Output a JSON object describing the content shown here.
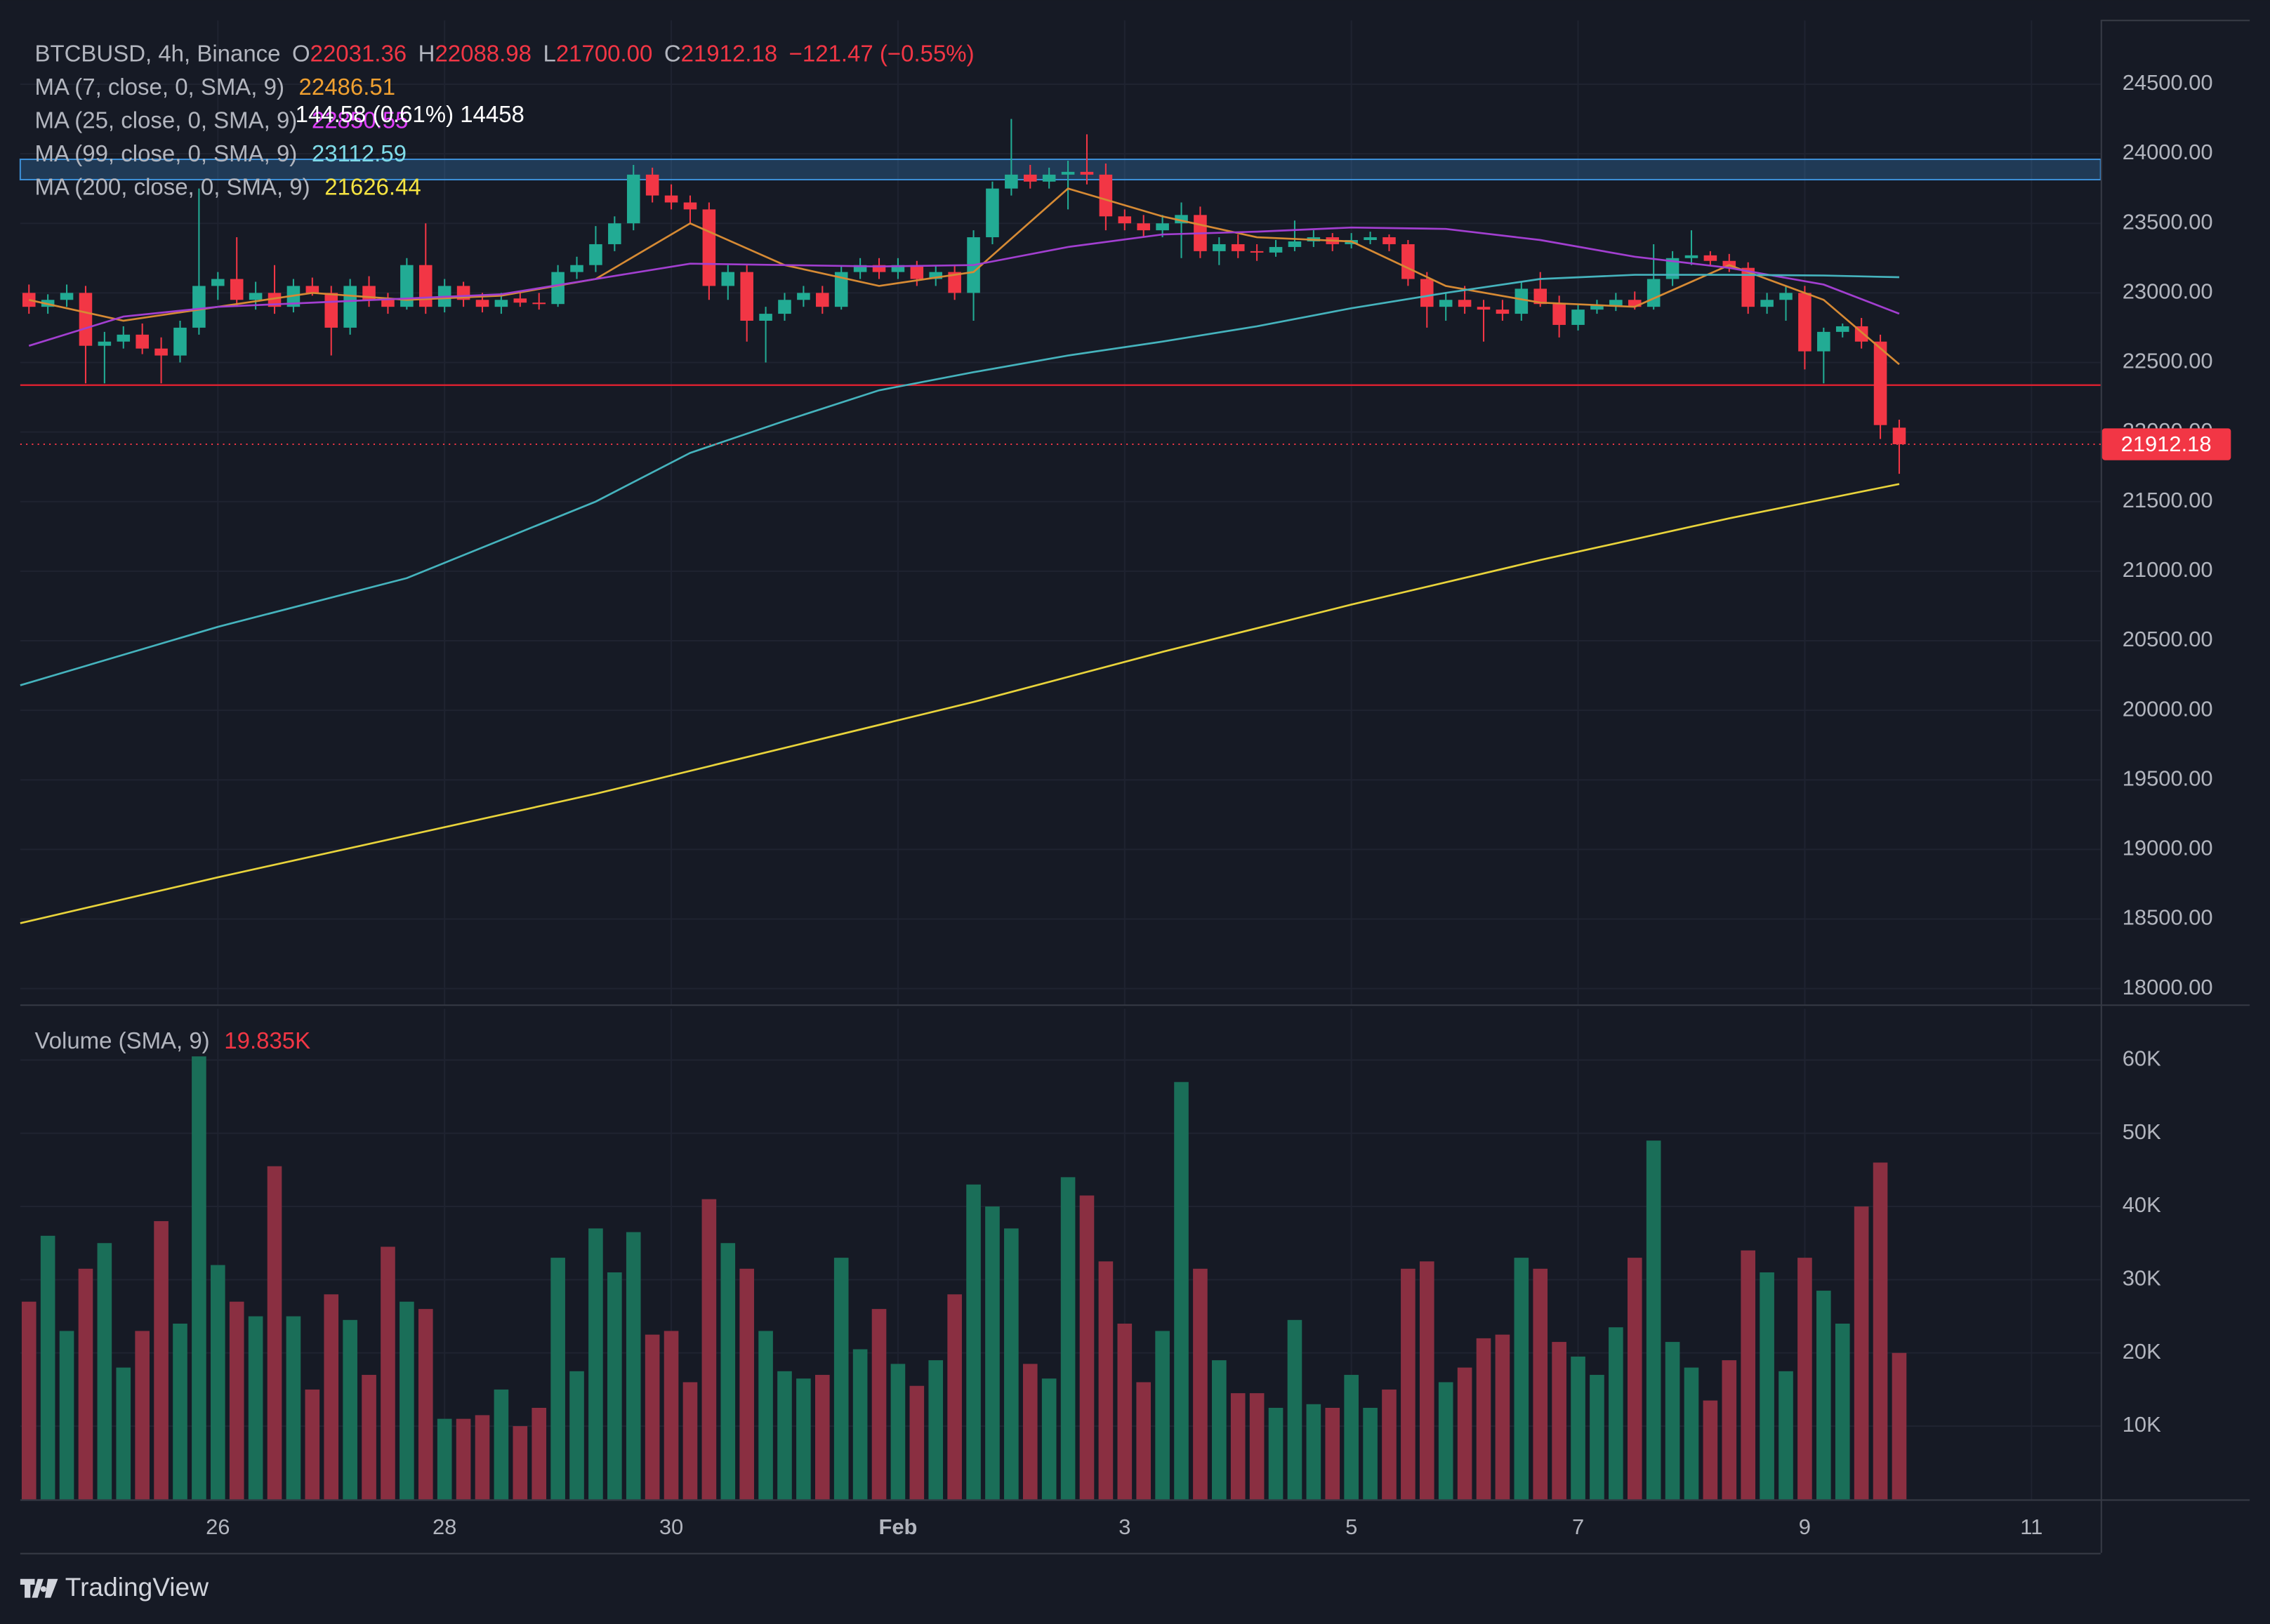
{
  "header": {
    "symbol": "BTCBUSD, 4h, Binance",
    "o_key": "O",
    "o": "22031.36",
    "h_key": "H",
    "h": "22088.98",
    "l_key": "L",
    "l": "21700.00",
    "c_key": "C",
    "c": "21912.18",
    "change": "−121.47 (−0.55%)",
    "ma": [
      {
        "label": "MA (7, close, 0, SMA, 9)",
        "value": "22486.51"
      },
      {
        "label": "MA (25, close, 0, SMA, 9)",
        "value": "22850.55"
      },
      {
        "label": "MA (99, close, 0, SMA, 9)",
        "value": "23112.59"
      },
      {
        "label": "MA (200, close, 0, SMA, 9)",
        "value": "21626.44"
      }
    ],
    "tooltip": "144.58 (0.61%) 14458",
    "volume_label": "Volume (SMA, 9)",
    "volume_value": "19.835K"
  },
  "logo": "TradingView",
  "chart_data": {
    "type": "candlestick",
    "up_color": "#22ab94",
    "down_color": "#f23645",
    "xlim": [
      -0.46,
      109.66
    ],
    "xticks": [
      {
        "value": 10,
        "label": "26"
      },
      {
        "value": 22,
        "label": "28"
      },
      {
        "value": 34,
        "label": "30"
      },
      {
        "value": 46,
        "label": "Feb"
      },
      {
        "value": 58,
        "label": "3"
      },
      {
        "value": 70,
        "label": "5"
      },
      {
        "value": 82,
        "label": "7"
      },
      {
        "value": 94,
        "label": "9"
      },
      {
        "value": 106,
        "label": "11"
      }
    ],
    "ylim": [
      17886,
      24958
    ],
    "yticks": [
      {
        "value": 18000,
        "label": "18000.00"
      },
      {
        "value": 18500,
        "label": "18500.00"
      },
      {
        "value": 19000,
        "label": "19000.00"
      },
      {
        "value": 19500,
        "label": "19500.00"
      },
      {
        "value": 20000,
        "label": "20000.00"
      },
      {
        "value": 20500,
        "label": "20500.00"
      },
      {
        "value": 21000,
        "label": "21000.00"
      },
      {
        "value": 21500,
        "label": "21500.00"
      },
      {
        "value": 22000,
        "label": "22000.00"
      },
      {
        "value": 22500,
        "label": "22500.00"
      },
      {
        "value": 23000,
        "label": "23000.00"
      },
      {
        "value": 23500,
        "label": "23500.00"
      },
      {
        "value": 24000,
        "label": "24000.00"
      },
      {
        "value": 24500,
        "label": "24500.00"
      }
    ],
    "vlim": [
      0,
      67000
    ],
    "vticks": [
      {
        "value": 10000,
        "label": "10K"
      },
      {
        "value": 20000,
        "label": "20K"
      },
      {
        "value": 30000,
        "label": "30K"
      },
      {
        "value": 40000,
        "label": "40K"
      },
      {
        "value": 50000,
        "label": "50K"
      },
      {
        "value": 60000,
        "label": "60K"
      }
    ],
    "grid": true,
    "ohlc": [
      [
        23000,
        23060,
        22850,
        22900
      ],
      [
        22900,
        22990,
        22850,
        22950
      ],
      [
        22950,
        23060,
        22900,
        23000
      ],
      [
        23000,
        23050,
        22350,
        22620
      ],
      [
        22620,
        22720,
        22350,
        22650
      ],
      [
        22650,
        22760,
        22600,
        22700
      ],
      [
        22700,
        22780,
        22560,
        22600
      ],
      [
        22600,
        22680,
        22350,
        22550
      ],
      [
        22550,
        22800,
        22500,
        22750
      ],
      [
        22750,
        23750,
        22700,
        23050
      ],
      [
        23050,
        23150,
        22950,
        23100
      ],
      [
        23100,
        23400,
        22900,
        22950
      ],
      [
        22950,
        23080,
        22880,
        23000
      ],
      [
        23000,
        23200,
        22850,
        22900
      ],
      [
        22900,
        23100,
        22860,
        23050
      ],
      [
        23050,
        23110,
        22980,
        23000
      ],
      [
        23000,
        23050,
        22550,
        22750
      ],
      [
        22750,
        23100,
        22700,
        23050
      ],
      [
        23050,
        23120,
        22900,
        22950
      ],
      [
        22950,
        23000,
        22850,
        22900
      ],
      [
        22900,
        23250,
        22880,
        23200
      ],
      [
        23200,
        23500,
        22850,
        22900
      ],
      [
        22900,
        23100,
        22860,
        23050
      ],
      [
        23050,
        23080,
        22900,
        22950
      ],
      [
        22950,
        23000,
        22860,
        22900
      ],
      [
        22900,
        23000,
        22850,
        22950
      ],
      [
        22960,
        23000,
        22900,
        22930
      ],
      [
        22930,
        23000,
        22880,
        22920
      ],
      [
        22920,
        23200,
        22900,
        23150
      ],
      [
        23150,
        23260,
        23100,
        23200
      ],
      [
        23200,
        23480,
        23150,
        23350
      ],
      [
        23350,
        23550,
        23300,
        23500
      ],
      [
        23500,
        23920,
        23450,
        23850
      ],
      [
        23850,
        23900,
        23650,
        23700
      ],
      [
        23700,
        23780,
        23600,
        23650
      ],
      [
        23650,
        23700,
        23500,
        23600
      ],
      [
        23600,
        23650,
        22950,
        23050
      ],
      [
        23050,
        23200,
        22950,
        23150
      ],
      [
        23150,
        23200,
        22650,
        22800
      ],
      [
        22800,
        22900,
        22500,
        22850
      ],
      [
        22850,
        23000,
        22800,
        22950
      ],
      [
        22950,
        23050,
        22900,
        23000
      ],
      [
        23000,
        23050,
        22850,
        22900
      ],
      [
        22900,
        23200,
        22880,
        23150
      ],
      [
        23150,
        23250,
        23100,
        23200
      ],
      [
        23200,
        23250,
        23100,
        23150
      ],
      [
        23150,
        23250,
        23100,
        23200
      ],
      [
        23200,
        23230,
        23050,
        23100
      ],
      [
        23100,
        23200,
        23050,
        23150
      ],
      [
        23150,
        23200,
        22950,
        23000
      ],
      [
        23000,
        23450,
        22800,
        23400
      ],
      [
        23400,
        23800,
        23350,
        23750
      ],
      [
        23750,
        24250,
        23700,
        23850
      ],
      [
        23850,
        23920,
        23750,
        23800
      ],
      [
        23800,
        23900,
        23750,
        23850
      ],
      [
        23850,
        23950,
        23600,
        23870
      ],
      [
        23870,
        24140,
        23780,
        23850
      ],
      [
        23850,
        23930,
        23450,
        23550
      ],
      [
        23550,
        23600,
        23450,
        23500
      ],
      [
        23500,
        23560,
        23400,
        23450
      ],
      [
        23450,
        23560,
        23400,
        23500
      ],
      [
        23500,
        23650,
        23250,
        23560
      ],
      [
        23560,
        23620,
        23250,
        23300
      ],
      [
        23300,
        23400,
        23200,
        23350
      ],
      [
        23350,
        23420,
        23250,
        23300
      ],
      [
        23300,
        23350,
        23230,
        23290
      ],
      [
        23290,
        23380,
        23260,
        23330
      ],
      [
        23330,
        23520,
        23300,
        23370
      ],
      [
        23370,
        23450,
        23330,
        23400
      ],
      [
        23400,
        23430,
        23300,
        23350
      ],
      [
        23350,
        23430,
        23320,
        23380
      ],
      [
        23380,
        23440,
        23350,
        23400
      ],
      [
        23400,
        23420,
        23300,
        23350
      ],
      [
        23350,
        23380,
        23050,
        23100
      ],
      [
        23100,
        23150,
        22750,
        22900
      ],
      [
        22900,
        23000,
        22800,
        22950
      ],
      [
        22950,
        23050,
        22850,
        22900
      ],
      [
        22900,
        22950,
        22650,
        22880
      ],
      [
        22880,
        22950,
        22800,
        22850
      ],
      [
        22850,
        23080,
        22800,
        23030
      ],
      [
        23030,
        23150,
        22900,
        22920
      ],
      [
        22920,
        22980,
        22680,
        22770
      ],
      [
        22770,
        22920,
        22730,
        22880
      ],
      [
        22880,
        22950,
        22850,
        22910
      ],
      [
        22910,
        23000,
        22870,
        22950
      ],
      [
        22950,
        23010,
        22880,
        22900
      ],
      [
        22900,
        23350,
        22880,
        23100
      ],
      [
        23100,
        23300,
        23050,
        23250
      ],
      [
        23250,
        23450,
        23200,
        23270
      ],
      [
        23270,
        23300,
        23200,
        23230
      ],
      [
        23230,
        23280,
        23150,
        23180
      ],
      [
        23180,
        23220,
        22850,
        22900
      ],
      [
        22900,
        23000,
        22850,
        22950
      ],
      [
        22950,
        23050,
        22800,
        23000
      ],
      [
        23000,
        23050,
        22450,
        22580
      ],
      [
        22580,
        22750,
        22350,
        22720
      ],
      [
        22720,
        22780,
        22680,
        22760
      ],
      [
        22760,
        22820,
        22600,
        22650
      ],
      [
        22650,
        22700,
        21950,
        22050
      ],
      [
        22031.36,
        22088.98,
        21700,
        21912.18
      ]
    ],
    "volume": [
      27000,
      36000,
      23000,
      31500,
      35000,
      18000,
      23000,
      38000,
      24000,
      60500,
      32000,
      27000,
      25000,
      45500,
      25000,
      15000,
      28000,
      24500,
      17000,
      34500,
      27000,
      26000,
      11000,
      11000,
      11500,
      15000,
      10000,
      12500,
      33000,
      17500,
      37000,
      31000,
      36500,
      22500,
      23000,
      16000,
      41000,
      35000,
      31500,
      23000,
      17500,
      16500,
      17000,
      33000,
      20500,
      26000,
      18500,
      15500,
      19000,
      28000,
      43000,
      40000,
      37000,
      18500,
      16500,
      44000,
      41500,
      32500,
      24000,
      16000,
      23000,
      57000,
      31500,
      19000,
      14500,
      14500,
      12500,
      24500,
      13000,
      12500,
      17000,
      12500,
      15000,
      31500,
      32500,
      16000,
      18000,
      22000,
      22500,
      33000,
      31500,
      21500,
      19500,
      17000,
      23500,
      33000,
      49000,
      21500,
      18000,
      13500,
      19000,
      34000,
      31000,
      17500,
      33000,
      28500,
      24000,
      40000,
      46000,
      20000
    ],
    "lines": [
      {
        "color": "#d68a34",
        "x": [
          0,
          5,
          10,
          15,
          20,
          25,
          30,
          35,
          40,
          45,
          50,
          55,
          60,
          65,
          70,
          75,
          80,
          85,
          90,
          95,
          99
        ],
        "values": [
          22950,
          22800,
          22900,
          23000,
          22950,
          22980,
          23100,
          23500,
          23200,
          23050,
          23150,
          23750,
          23550,
          23400,
          23370,
          23050,
          22930,
          22900,
          23200,
          22950,
          22486.51
        ]
      },
      {
        "color": "#a23fd0",
        "x": [
          0,
          5,
          10,
          15,
          20,
          25,
          30,
          35,
          40,
          45,
          50,
          55,
          60,
          65,
          70,
          75,
          80,
          85,
          90,
          95,
          99
        ],
        "values": [
          22620,
          22830,
          22900,
          22930,
          22960,
          22990,
          23100,
          23210,
          23200,
          23190,
          23200,
          23330,
          23420,
          23440,
          23470,
          23460,
          23380,
          23260,
          23180,
          23060,
          22850.55
        ]
      },
      {
        "color": "#45b3bd",
        "x": [
          -0.46,
          10,
          20,
          30,
          35,
          40,
          45,
          50,
          55,
          60,
          65,
          70,
          75,
          80,
          85,
          90,
          95,
          99
        ],
        "values": [
          20180,
          20600,
          20950,
          21500,
          21850,
          22080,
          22300,
          22430,
          22550,
          22650,
          22760,
          22890,
          23000,
          23100,
          23130,
          23130,
          23125,
          23112.59
        ]
      },
      {
        "color": "#e8d33b",
        "x": [
          -0.46,
          10,
          20,
          30,
          40,
          50,
          60,
          70,
          80,
          90,
          99
        ],
        "values": [
          18470,
          18800,
          19100,
          19400,
          19730,
          20060,
          20420,
          20760,
          21080,
          21380,
          21626.44
        ]
      }
    ],
    "hlines": [
      {
        "value": 22337,
        "color": "#d6202f"
      }
    ],
    "box": {
      "values": [
        23814,
        23960
      ],
      "color": "#3d8fd6"
    }
  }
}
